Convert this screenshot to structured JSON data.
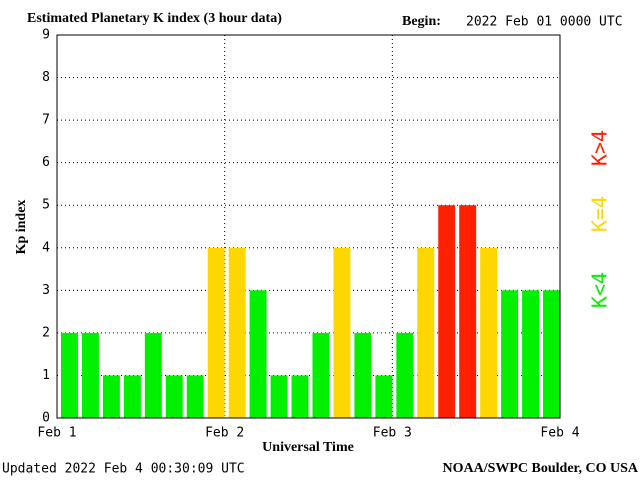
{
  "chart_data": {
    "type": "bar",
    "title": "Estimated Planetary K index (3 hour data)",
    "begin_label": "Begin:",
    "begin": "2022 Feb 01 0000 UTC",
    "y_label": "Kp index",
    "x_label": "Universal Time",
    "updated": "Updated 2022 Feb  4 00:30:09 UTC",
    "source": "NOAA/SWPC Boulder, CO USA",
    "categories": [
      null,
      null,
      null,
      null,
      null,
      null,
      null,
      null,
      null,
      null,
      null,
      null,
      null,
      null,
      null,
      null,
      null,
      null,
      null,
      null,
      null,
      null,
      null,
      null
    ],
    "values": [
      2,
      2,
      1,
      1,
      2,
      1,
      1,
      4,
      4,
      3,
      1,
      1,
      2,
      4,
      2,
      1,
      2,
      4,
      5,
      5,
      4,
      3,
      3,
      3
    ],
    "colors": [
      "#00f000",
      "#00f000",
      "#00f000",
      "#00f000",
      "#00f000",
      "#00f000",
      "#00f000",
      "#ffd700",
      "#ffd700",
      "#00f000",
      "#00f000",
      "#00f000",
      "#00f000",
      "#ffd700",
      "#00f000",
      "#00f000",
      "#00f000",
      "#ffd700",
      "#ff2000",
      "#ff2000",
      "#ffd700",
      "#00f000",
      "#00f000",
      "#00f000"
    ],
    "xlim": [
      0,
      24
    ],
    "xticks": [
      {
        "value": 0,
        "label": "Feb 1"
      },
      {
        "value": 8,
        "label": "Feb 2"
      },
      {
        "value": 16,
        "label": "Feb 3"
      },
      {
        "value": 24,
        "label": "Feb 4"
      }
    ],
    "ylim": [
      0,
      9
    ],
    "yticks": [
      0,
      1,
      2,
      3,
      4,
      5,
      6,
      7,
      8,
      9
    ],
    "grid": true,
    "legend": [
      {
        "label": "K>4",
        "color": "#ff2000"
      },
      {
        "label": "K=4",
        "color": "#ffd700"
      },
      {
        "label": "K<4",
        "color": "#00f000"
      }
    ]
  }
}
